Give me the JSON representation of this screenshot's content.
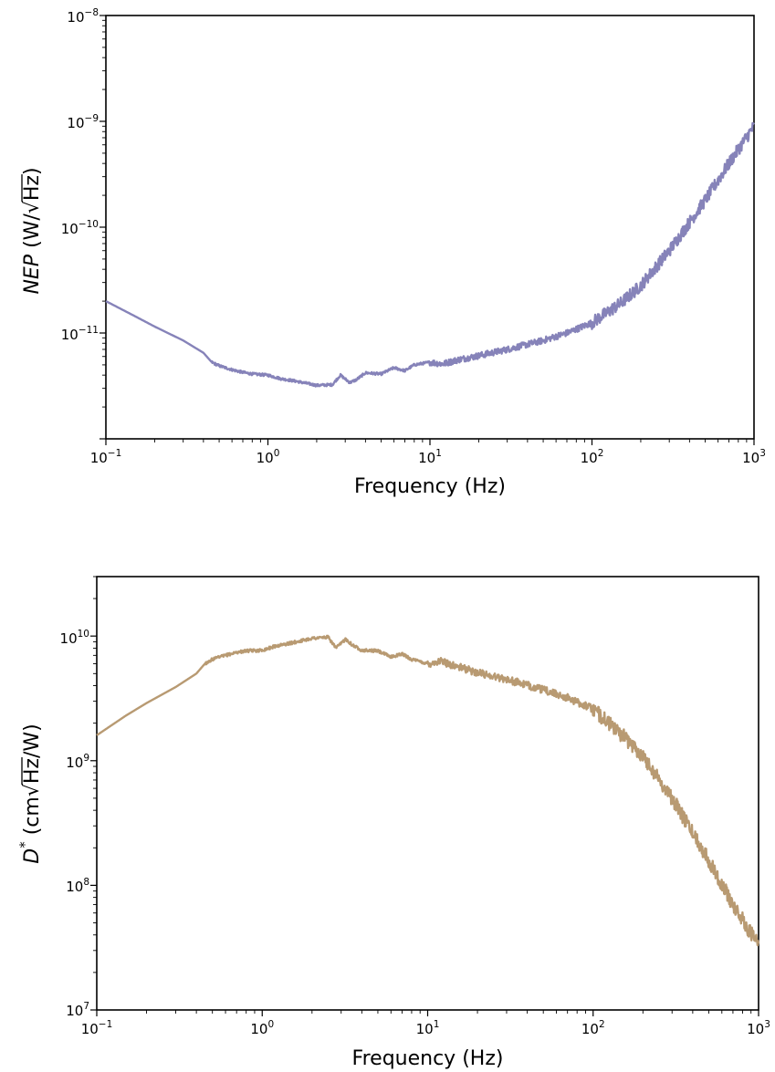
{
  "chart_data": [
    {
      "type": "line",
      "x_scale": "log",
      "y_scale": "log",
      "xlabel": "Frequency (Hz)",
      "ylabel_parts": {
        "symbol": "NEP",
        "unit_pre": "(W/",
        "unit_sqrt": "Hz",
        "unit_post": ")"
      },
      "xlim": [
        0.1,
        1000
      ],
      "ylim": [
        1e-12,
        1e-08
      ],
      "x_ticks": [
        {
          "value": 0.1,
          "base": "10",
          "exp": "−1"
        },
        {
          "value": 1,
          "base": "10",
          "exp": "0"
        },
        {
          "value": 10,
          "base": "10",
          "exp": "1"
        },
        {
          "value": 100,
          "base": "10",
          "exp": "2"
        },
        {
          "value": 1000,
          "base": "10",
          "exp": "3"
        }
      ],
      "y_ticks": [
        {
          "value": 1e-11,
          "base": "10",
          "exp": "−11"
        },
        {
          "value": 1e-10,
          "base": "10",
          "exp": "−10"
        },
        {
          "value": 1e-09,
          "base": "10",
          "exp": "−9"
        },
        {
          "value": 1e-08,
          "base": "10",
          "exp": "−8"
        }
      ],
      "series": [
        {
          "color": "#8683b9",
          "x": [
            0.1,
            0.15,
            0.2,
            0.3,
            0.4,
            0.45,
            0.5,
            0.6,
            0.7,
            0.8,
            1,
            1.2,
            1.5,
            2,
            2.5,
            2.8,
            3.2,
            3.5,
            4,
            5,
            6,
            7,
            8,
            10,
            12,
            15,
            20,
            30,
            50,
            70,
            100,
            150,
            200,
            300,
            500,
            700,
            1000
          ],
          "y": [
            2e-11,
            1.45e-11,
            1.15e-11,
            8.5e-12,
            6.5e-12,
            5.3e-12,
            4.9e-12,
            4.5e-12,
            4.25e-12,
            4.1e-12,
            4e-12,
            3.7e-12,
            3.5e-12,
            3.2e-12,
            3.25e-12,
            4e-12,
            3.4e-12,
            3.6e-12,
            4.2e-12,
            4.1e-12,
            4.7e-12,
            4.4e-12,
            5e-12,
            5.3e-12,
            5.1e-12,
            5.6e-12,
            6.1e-12,
            7e-12,
            8.5e-12,
            1e-11,
            1.25e-11,
            1.9e-11,
            2.8e-11,
            6e-11,
            1.8e-10,
            4e-10,
            9e-10
          ]
        }
      ]
    },
    {
      "type": "line",
      "x_scale": "log",
      "y_scale": "log",
      "xlabel": "Frequency (Hz)",
      "ylabel_parts": {
        "symbol": "D",
        "sup": "*",
        "unit_pre": " (cm",
        "unit_sqrt": "Hz",
        "unit_post": "/W)"
      },
      "xlim": [
        0.1,
        1000
      ],
      "ylim": [
        10000000.0,
        30000000000.0
      ],
      "x_ticks": [
        {
          "value": 0.1,
          "base": "10",
          "exp": "−1"
        },
        {
          "value": 1,
          "base": "10",
          "exp": "0"
        },
        {
          "value": 10,
          "base": "10",
          "exp": "1"
        },
        {
          "value": 100,
          "base": "10",
          "exp": "2"
        },
        {
          "value": 1000,
          "base": "10",
          "exp": "3"
        }
      ],
      "y_ticks": [
        {
          "value": 10000000.0,
          "base": "10",
          "exp": "7"
        },
        {
          "value": 100000000.0,
          "base": "10",
          "exp": "8"
        },
        {
          "value": 1000000000.0,
          "base": "10",
          "exp": "9"
        },
        {
          "value": 10000000000.0,
          "base": "10",
          "exp": "10"
        }
      ],
      "series": [
        {
          "color": "#b89a72",
          "x": [
            0.1,
            0.15,
            0.2,
            0.3,
            0.4,
            0.45,
            0.5,
            0.6,
            0.7,
            0.8,
            1,
            1.2,
            1.5,
            2,
            2.5,
            2.8,
            3.2,
            3.5,
            4,
            5,
            6,
            7,
            8,
            10,
            12,
            15,
            20,
            30,
            50,
            70,
            100,
            150,
            200,
            300,
            500,
            700,
            1000
          ],
          "y": [
            1600000000.0,
            2300000000.0,
            2900000000.0,
            3900000000.0,
            5000000000.0,
            6000000000.0,
            6500000000.0,
            7000000000.0,
            7400000000.0,
            7600000000.0,
            7700000000.0,
            8300000000.0,
            8800000000.0,
            9600000000.0,
            9800000000.0,
            8000000000.0,
            9500000000.0,
            8500000000.0,
            7700000000.0,
            7600000000.0,
            6800000000.0,
            7200000000.0,
            6500000000.0,
            6000000000.0,
            6300000000.0,
            5700000000.0,
            5100000000.0,
            4500000000.0,
            3700000000.0,
            3200000000.0,
            2600000000.0,
            1600000000.0,
            1100000000.0,
            500000000.0,
            160000000.0,
            70000000.0,
            33000000.0
          ]
        }
      ]
    }
  ]
}
